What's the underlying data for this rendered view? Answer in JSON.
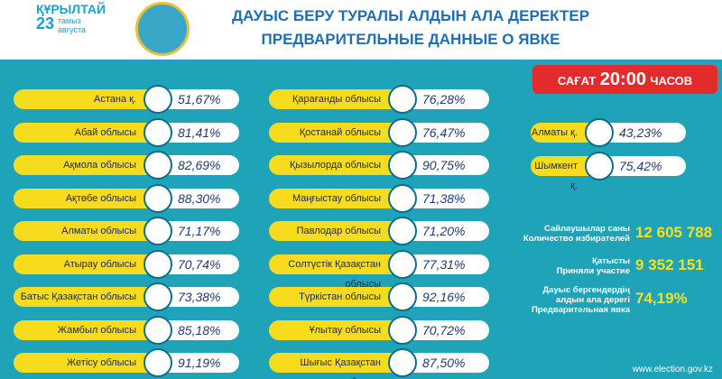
{
  "header": {
    "logo_lines": [
      "ҚҰРЫЛТАЙ",
      "23",
      "тамыз",
      "августа"
    ],
    "title": [
      "ДАУЫС БЕРУ ТУРАЛЫ АЛДЫН АЛА ДЕРЕКТЕР",
      "ПРЕДВАРИТЕЛЬНЫЕ ДАННЫЕ О ЯВКЕ"
    ]
  },
  "time_badge": {
    "prefix": "САҒАТ",
    "time": "20:00",
    "suffix": "ЧАСОВ"
  },
  "columns": [
    [
      {
        "name": "Астана қ.",
        "value": "51,67%"
      },
      {
        "name": "Абай облысы",
        "value": "81,41%"
      },
      {
        "name": "Ақмола облысы",
        "value": "82,69%"
      },
      {
        "name": "Ақтөбе облысы",
        "value": "88,30%"
      },
      {
        "name": "Алматы облысы",
        "value": "71,17%"
      },
      {
        "name": "Атырау облысы",
        "value": "70,74%"
      },
      {
        "name": "Батыс Қазақстан облысы",
        "value": "73,38%"
      },
      {
        "name": "Жамбыл облысы",
        "value": "85,18%"
      },
      {
        "name": "Жетісу облысы",
        "value": "91,19%"
      }
    ],
    [
      {
        "name": "Қарағанды облысы",
        "value": "76,28%"
      },
      {
        "name": "Қостанай облысы",
        "value": "76,47%"
      },
      {
        "name": "Қызылорда облысы",
        "value": "90,75%"
      },
      {
        "name": "Маңғыстау облысы",
        "value": "71,38%"
      },
      {
        "name": "Павлодар облысы",
        "value": "71,20%"
      },
      {
        "name": "Солтүстік Қазақстан облысы",
        "value": "77,31%"
      },
      {
        "name": "Түркістан облысы",
        "value": "92,16%"
      },
      {
        "name": "Ұлытау облысы",
        "value": "70,72%"
      },
      {
        "name": "Шығыс Қазақстан облысы",
        "value": "87,50%"
      }
    ],
    [
      {
        "name": "Алматы қ.",
        "value": "43,23%"
      },
      {
        "name": "Шымкент қ.",
        "value": "75,42%"
      }
    ]
  ],
  "stats": [
    {
      "label": [
        "Сайлаушылар саны",
        "Количество избирателей"
      ],
      "value": "12 605 788"
    },
    {
      "label": [
        "Қатысты",
        "Приняли участие"
      ],
      "value": "9 352 151"
    },
    {
      "label": [
        "Дауыс бергендердің",
        "алдын ала дерегі",
        "Предварительная явка"
      ],
      "value": "74,19%"
    }
  ],
  "footer": "www.election.gov.kz"
}
